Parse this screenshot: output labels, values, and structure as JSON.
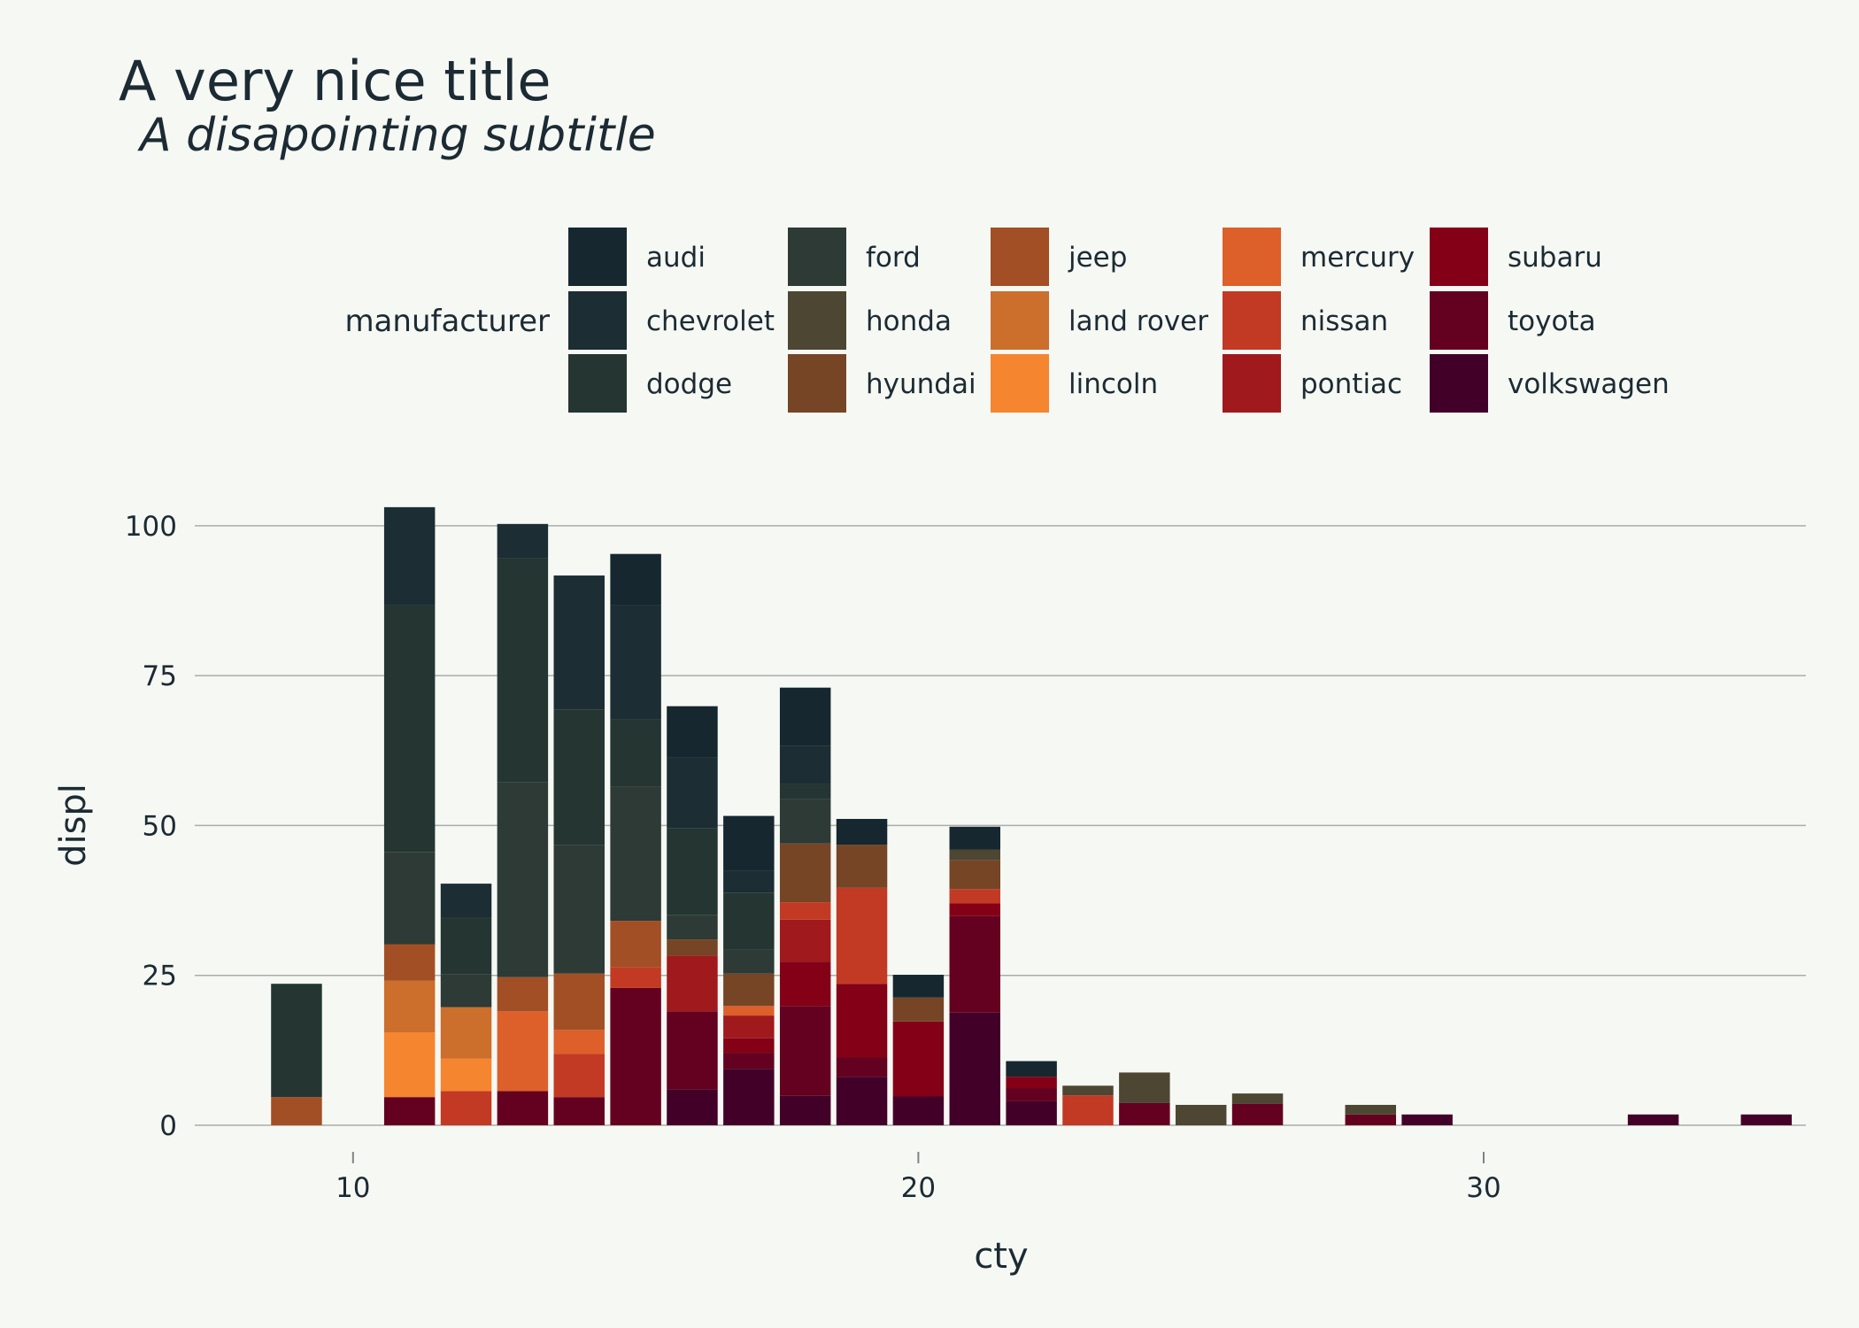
{
  "chart_data": {
    "type": "bar",
    "stacked": true,
    "title": "A very nice title",
    "subtitle": "A disapointing subtitle",
    "xlabel": "cty",
    "ylabel": "displ",
    "xlim": [
      7.2,
      35.7
    ],
    "ylim": [
      0,
      105
    ],
    "x_ticks": [
      10,
      20,
      30
    ],
    "y_ticks": [
      0,
      25,
      50,
      75,
      100
    ],
    "bar_width": 0.9,
    "grid": "horizontal",
    "legend": {
      "title": "manufacturer",
      "position": "top",
      "columns": 5
    },
    "x": [
      9,
      11,
      12,
      13,
      14,
      15,
      16,
      17,
      18,
      19,
      20,
      21,
      22,
      23,
      24,
      25,
      26,
      28,
      29,
      33,
      35
    ],
    "series": [
      {
        "name": "audi",
        "color": "#16272f",
        "values": [
          0,
          0,
          0,
          0,
          0,
          8.6,
          8.6,
          9.2,
          9.7,
          4.3,
          3.8,
          3.8,
          2.6,
          0,
          0,
          0,
          0,
          0,
          0,
          0,
          0
        ]
      },
      {
        "name": "chevrolet",
        "color": "#1c2d34",
        "values": [
          0,
          16.4,
          5.6,
          5.7,
          22.4,
          19.0,
          11.8,
          3.6,
          6.3,
          0,
          0,
          0,
          0,
          0,
          0,
          0,
          0,
          0,
          0,
          0,
          0
        ]
      },
      {
        "name": "dodge",
        "color": "#243532",
        "values": [
          18.9,
          41.1,
          9.5,
          37.4,
          22.6,
          11.2,
          14.4,
          9.5,
          2.6,
          0,
          0,
          0,
          0,
          0,
          0,
          0,
          0,
          0,
          0,
          0,
          0
        ]
      },
      {
        "name": "ford",
        "color": "#2d3a35",
        "values": [
          0,
          15.4,
          5.5,
          32.5,
          21.4,
          22.4,
          4.1,
          4.0,
          7.4,
          0,
          0,
          0,
          0,
          0,
          0,
          0,
          0,
          0,
          0,
          0,
          0
        ]
      },
      {
        "name": "honda",
        "color": "#4c4633",
        "values": [
          0,
          0,
          0,
          0,
          0,
          0,
          0,
          0,
          0,
          0,
          0,
          1.8,
          0,
          1.6,
          5.1,
          3.4,
          1.7,
          1.6,
          0,
          0,
          0
        ]
      },
      {
        "name": "hyundai",
        "color": "#754526",
        "values": [
          0,
          0,
          0,
          0,
          0,
          0,
          2.7,
          5.4,
          9.8,
          7.2,
          4.0,
          4.8,
          0,
          0,
          0,
          0,
          0,
          0,
          0,
          0,
          0
        ]
      },
      {
        "name": "jeep",
        "color": "#a24f25",
        "values": [
          4.7,
          6.1,
          0,
          5.7,
          9.4,
          7.7,
          0,
          0,
          0,
          0,
          0,
          0,
          0,
          0,
          0,
          0,
          0,
          0,
          0,
          0,
          0
        ]
      },
      {
        "name": "land rover",
        "color": "#cc6e2c",
        "values": [
          0,
          8.6,
          8.6,
          0,
          0,
          0,
          0,
          0,
          0,
          0,
          0,
          0,
          0,
          0,
          0,
          0,
          0,
          0,
          0,
          0,
          0
        ]
      },
      {
        "name": "lincoln",
        "color": "#f5852f",
        "values": [
          0,
          10.8,
          5.4,
          0,
          0,
          0,
          0,
          0,
          0,
          0,
          0,
          0,
          0,
          0,
          0,
          0,
          0,
          0,
          0,
          0,
          0
        ]
      },
      {
        "name": "mercury",
        "color": "#dd5f2a",
        "values": [
          0,
          0,
          0,
          13.3,
          4.0,
          0,
          0,
          1.6,
          0,
          0,
          0,
          0,
          0,
          0,
          0,
          0,
          0,
          0,
          0,
          0,
          0
        ]
      },
      {
        "name": "nissan",
        "color": "#c23a24",
        "values": [
          0,
          0,
          5.7,
          0,
          7.2,
          3.5,
          0,
          0,
          2.9,
          16.0,
          0,
          2.4,
          0,
          5.0,
          0,
          0,
          0,
          0,
          0,
          0,
          0
        ]
      },
      {
        "name": "pontiac",
        "color": "#a0191c",
        "values": [
          0,
          0,
          0,
          0,
          0,
          0,
          9.3,
          3.8,
          7.0,
          0,
          0,
          0,
          0,
          0,
          0,
          0,
          0,
          0,
          0,
          0,
          0
        ]
      },
      {
        "name": "subaru",
        "color": "#830016",
        "values": [
          0,
          0,
          0,
          0,
          0,
          0,
          0,
          2.4,
          7.4,
          12.3,
          12.5,
          2.1,
          1.9,
          0,
          0,
          0,
          0,
          0,
          0,
          0,
          0
        ]
      },
      {
        "name": "toyota",
        "color": "#640020",
        "values": [
          0,
          4.7,
          0,
          5.7,
          4.7,
          22.9,
          13.0,
          2.7,
          15.0,
          3.2,
          0,
          16.1,
          2.2,
          0,
          3.7,
          0,
          3.6,
          1.8,
          0,
          0,
          0
        ]
      },
      {
        "name": "volkswagen",
        "color": "#420029",
        "values": [
          0,
          0,
          0,
          0,
          0,
          0,
          6.0,
          9.4,
          4.9,
          8.1,
          4.8,
          18.8,
          4.0,
          0,
          0,
          0,
          0,
          0,
          1.8,
          1.8,
          1.8
        ]
      }
    ]
  }
}
